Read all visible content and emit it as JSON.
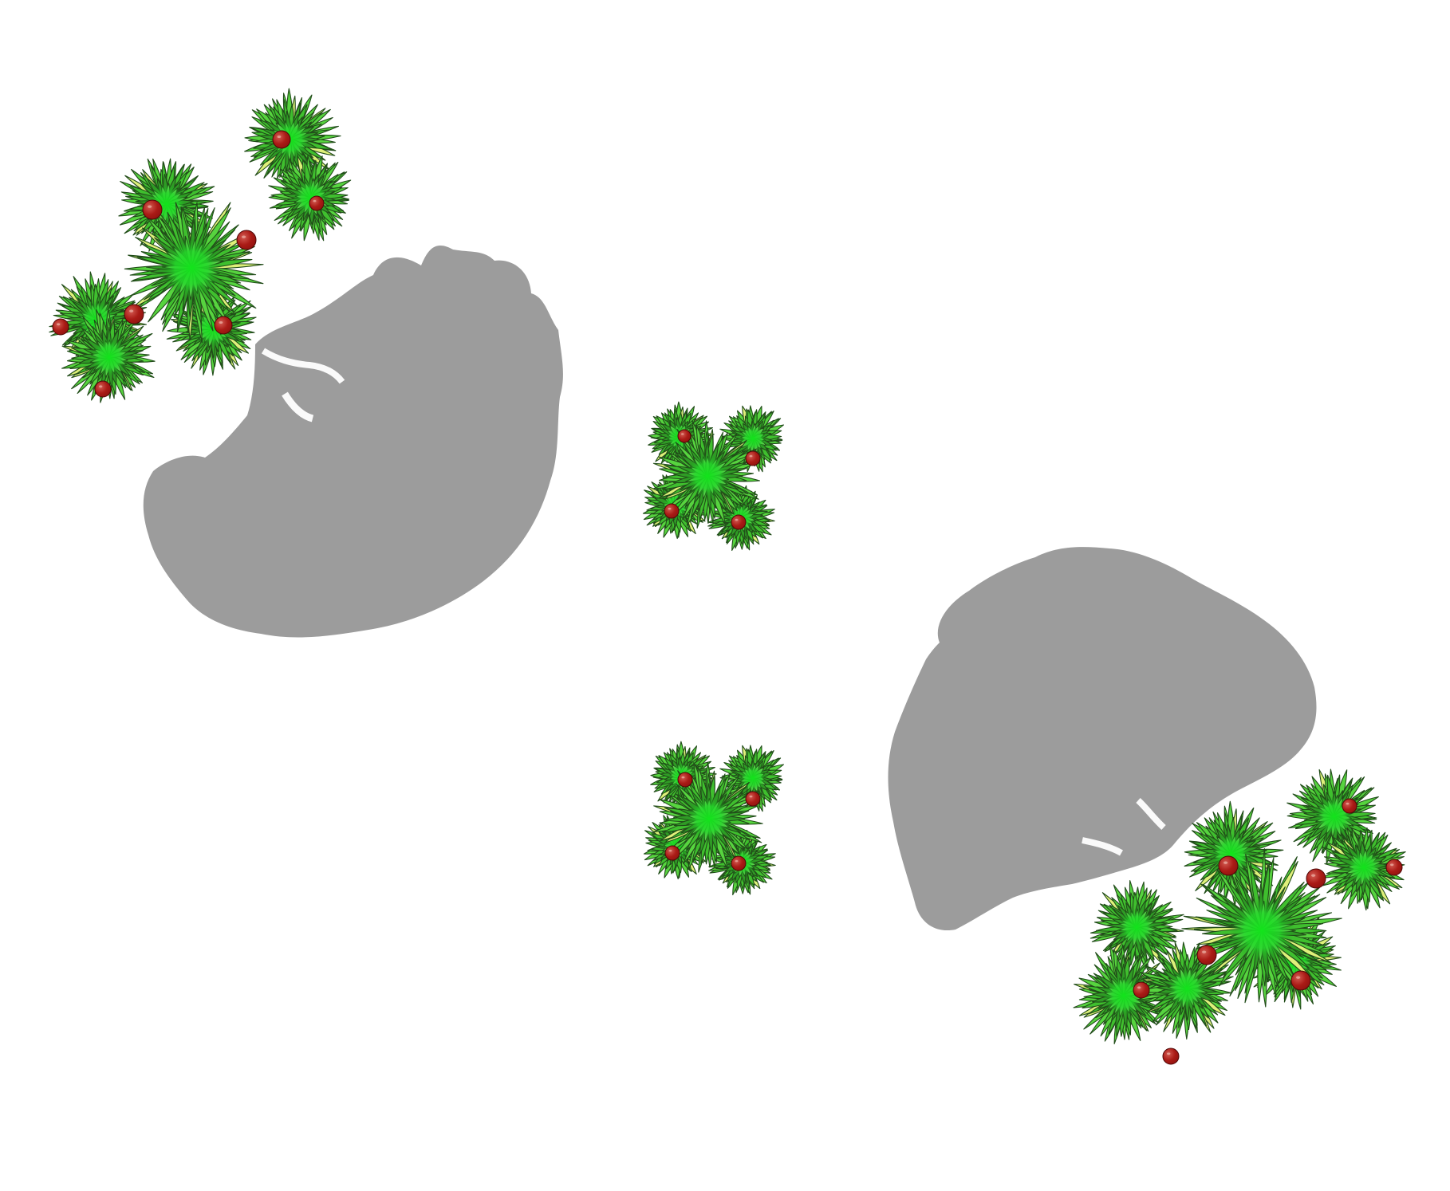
{
  "scene": {
    "background_color": "#ffffff",
    "shadow_color": "#9c9c9c",
    "leaf_colors": [
      "#3fbf2e",
      "#57d43f",
      "#6ee25a",
      "#2f9b25"
    ],
    "leaf_highlight": "#dff07a",
    "center_glow": "#12e51b",
    "fruit_color": "#8f120f",
    "fruit_highlight": "#d35b52",
    "items": [
      {
        "name": "large-fruit-tree-top-left",
        "kind": "large-tree"
      },
      {
        "name": "large-tree-shadow-top-left",
        "kind": "shadow"
      },
      {
        "name": "small-fruit-bush-top-center",
        "kind": "small-bush"
      },
      {
        "name": "small-fruit-bush-bottom-center",
        "kind": "small-bush"
      },
      {
        "name": "large-tree-shadow-bottom-right",
        "kind": "shadow"
      },
      {
        "name": "large-fruit-tree-bottom-right",
        "kind": "large-tree"
      }
    ]
  }
}
